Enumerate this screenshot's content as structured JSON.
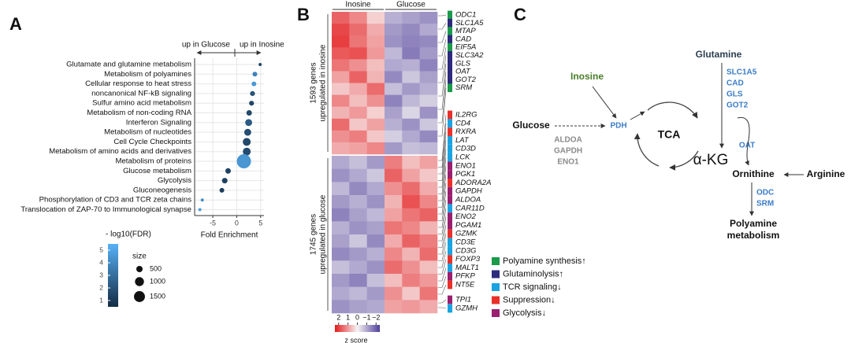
{
  "chart_data": [
    {
      "type": "dot",
      "label": "A",
      "annotations": [
        "up in Glucose",
        "up in Inosine"
      ],
      "categories": [
        "Glutamate and glutamine metabolism",
        "Metabolism of polyamines",
        "Cellular response to heat stress",
        "noncanonical NF-kB signaling",
        "Sulfur amino acid metabolism",
        "Metabolism of non-coding RNA",
        "Interferon Signaling",
        "Metabolism of nucleotides",
        "Cell Cycle Checkpoints",
        "Metabolism of amino acids and derivatives",
        "Metabolism of proteins",
        "Glucose metabolism",
        "Glycolysis",
        "Gluconeogenesis",
        "Phosphorylation of CD3 and TCR zeta chains",
        "Translocation of ZAP-70 to Immunological synapse"
      ],
      "values": [
        4.9,
        3.8,
        3.6,
        3.3,
        3.1,
        2.6,
        2.5,
        2.3,
        2.1,
        2.1,
        1.5,
        -1.8,
        -2.5,
        -3.1,
        -7.2,
        -7.7
      ],
      "sizes": [
        120,
        280,
        280,
        300,
        300,
        380,
        600,
        600,
        770,
        770,
        2500,
        380,
        380,
        280,
        120,
        120
      ],
      "fdr": [
        1.5,
        3.8,
        4.6,
        2.0,
        1.5,
        1.6,
        2.3,
        1.8,
        1.6,
        1.7,
        4.5,
        1.4,
        1.3,
        1.2,
        4.2,
        4.8
      ],
      "xlim": [
        -8.8,
        5.7
      ],
      "xticks": [
        -5,
        0,
        5
      ],
      "xlabel": "Fold Enrichment",
      "grid": true,
      "color_title": "- log10(FDR)",
      "clim": [
        0.5,
        5.5
      ],
      "cticks": [
        1,
        2,
        3,
        4,
        5
      ],
      "colors": [
        "#132b43",
        "#56b1f7"
      ],
      "size_title": "size",
      "size_legend": [
        500,
        1000,
        1500
      ]
    },
    {
      "type": "heatmap",
      "label": "B",
      "categories": [
        "Inosine",
        "Inosine",
        "Inosine",
        "Glucose",
        "Glucose",
        "Glucose"
      ],
      "blocks": [
        {
          "count_label": "1593 genes",
          "label": "upregulated in inosine",
          "values": [
            [
              1.6,
              1.2,
              0.4,
              -0.9,
              -1.1,
              -1.3
            ],
            [
              1.9,
              1.5,
              0.8,
              -1.2,
              -1.4,
              -1.0
            ],
            [
              2.0,
              1.4,
              0.9,
              -1.3,
              -1.5,
              -1.4
            ],
            [
              1.7,
              1.8,
              1.0,
              -0.8,
              -1.6,
              -1.2
            ],
            [
              1.4,
              1.1,
              0.6,
              -1.0,
              -0.9,
              -1.5
            ],
            [
              0.9,
              1.6,
              0.7,
              -1.4,
              -0.6,
              -1.1
            ],
            [
              0.5,
              0.8,
              1.5,
              -0.7,
              -1.2,
              -0.9
            ],
            [
              1.2,
              0.6,
              1.1,
              -1.5,
              -0.8,
              -0.5
            ],
            [
              0.7,
              1.0,
              0.4,
              -1.1,
              -0.4,
              -1.3
            ],
            [
              1.5,
              0.5,
              0.9,
              -0.9,
              -1.3,
              -0.6
            ],
            [
              1.1,
              1.3,
              0.5,
              -0.5,
              -1.0,
              -1.4
            ],
            [
              0.8,
              0.9,
              1.2,
              -1.2,
              -0.7,
              -0.8
            ]
          ]
        },
        {
          "count_label": "1745 genes",
          "label": "upregulated in glucose",
          "values": [
            [
              -1.0,
              -0.7,
              -1.2,
              1.3,
              0.6,
              0.9
            ],
            [
              -1.3,
              -1.0,
              -0.6,
              1.6,
              0.9,
              0.5
            ],
            [
              -0.8,
              -1.4,
              -1.0,
              1.1,
              1.5,
              0.8
            ],
            [
              -1.2,
              -0.9,
              -1.3,
              0.7,
              1.8,
              1.2
            ],
            [
              -1.5,
              -1.1,
              -0.8,
              0.9,
              1.4,
              1.6
            ],
            [
              -0.9,
              -1.3,
              -1.1,
              1.4,
              1.2,
              0.7
            ],
            [
              -1.1,
              -0.6,
              -1.4,
              0.8,
              1.6,
              1.3
            ],
            [
              -1.4,
              -1.2,
              -0.9,
              1.2,
              0.7,
              1.5
            ],
            [
              -0.7,
              -1.0,
              -1.3,
              1.5,
              1.1,
              0.6
            ],
            [
              -1.2,
              -1.5,
              -0.7,
              0.6,
              1.3,
              1.0
            ],
            [
              -1.0,
              -0.8,
              -1.2,
              1.1,
              0.5,
              1.4
            ],
            [
              -1.3,
              -1.1,
              -1.0,
              0.9,
              1.0,
              0.8
            ]
          ]
        }
      ],
      "zlim": [
        2.4,
        -2.4
      ],
      "zticks": [
        2,
        1,
        0,
        {
          "value": -1,
          "label": "−1"
        },
        {
          "value": -2,
          "label": "−2"
        }
      ],
      "zlabel": "z score",
      "colors": [
        "#4f3f9b",
        "#f7f4f4",
        "#e41a1c"
      ],
      "genes": [
        {
          "name": "ODC1",
          "color": "#1a9a4a"
        },
        {
          "name": "SLC1A5",
          "color": "#2e2a7e"
        },
        {
          "name": "MTAP",
          "color": "#1a9a4a"
        },
        {
          "name": "CAD",
          "color": "#2e2a7e"
        },
        {
          "name": "EIF5A",
          "color": "#1a9a4a"
        },
        {
          "name": "SLC3A2",
          "color": "#2e2a7e"
        },
        {
          "name": "GLS",
          "color": "#2e2a7e"
        },
        {
          "name": "OAT",
          "color": "#2e2a7e"
        },
        {
          "name": "GOT2",
          "color": "#2e2a7e"
        },
        {
          "name": "SRM",
          "color": "#1a9a4a"
        },
        {
          "name": "IL2RG",
          "color": "#e8312a"
        },
        {
          "name": "CD4",
          "color": "#1aa3e0"
        },
        {
          "name": "RXRA",
          "color": "#e8312a"
        },
        {
          "name": "LAT",
          "color": "#1aa3e0"
        },
        {
          "name": "CD3D",
          "color": "#1aa3e0"
        },
        {
          "name": "LCK",
          "color": "#1aa3e0"
        },
        {
          "name": "ENO1",
          "color": "#9a1f6e"
        },
        {
          "name": "PGK1",
          "color": "#9a1f6e"
        },
        {
          "name": "ADORA2A",
          "color": "#e8312a"
        },
        {
          "name": "GAPDH",
          "color": "#9a1f6e"
        },
        {
          "name": "ALDOA",
          "color": "#9a1f6e"
        },
        {
          "name": "CAR11D",
          "color": "#1aa3e0"
        },
        {
          "name": "ENO2",
          "color": "#9a1f6e"
        },
        {
          "name": "PGAM1",
          "color": "#9a1f6e"
        },
        {
          "name": "GZMK",
          "color": "#e8312a"
        },
        {
          "name": "CD3E",
          "color": "#1aa3e0"
        },
        {
          "name": "CD3G",
          "color": "#1aa3e0"
        },
        {
          "name": "FOXP3",
          "color": "#e8312a"
        },
        {
          "name": "MALT1",
          "color": "#1aa3e0"
        },
        {
          "name": "PFKP",
          "color": "#9a1f6e"
        },
        {
          "name": "NT5E",
          "color": "#e8312a"
        },
        {
          "name": "TPI1",
          "color": "#9a1f6e"
        },
        {
          "name": "GZMH",
          "color": "#1aa3e0"
        }
      ],
      "gene_legend": [
        {
          "label": "Polyamine synthesis↑",
          "color": "#1a9a4a"
        },
        {
          "label": "Glutaminolysis↑",
          "color": "#2e2a7e"
        },
        {
          "label": "TCR signaling↓",
          "color": "#1aa3e0"
        },
        {
          "label": "Suppression↓",
          "color": "#e8312a"
        },
        {
          "label": "Glycolysis↓",
          "color": "#9a1f6e"
        }
      ]
    }
  ],
  "diagram": {
    "label": "C",
    "glutamine": "Glutamine",
    "transporters": [
      "SLC1A5",
      "CAD",
      "GLS",
      "GOT2"
    ],
    "inosine": "Inosine",
    "glucose": "Glucose",
    "pdh": "PDH",
    "glycolytic_enzymes": [
      "ALDOA",
      "GAPDH",
      "ENO1"
    ],
    "tca": "TCA",
    "akg": "α-KG",
    "oat": "OAT",
    "ornithine": "Ornithine",
    "arginine": "Arginine",
    "polyamine_enzymes": [
      "ODC",
      "SRM"
    ],
    "product": [
      "Polyamine",
      "metabolism"
    ]
  }
}
